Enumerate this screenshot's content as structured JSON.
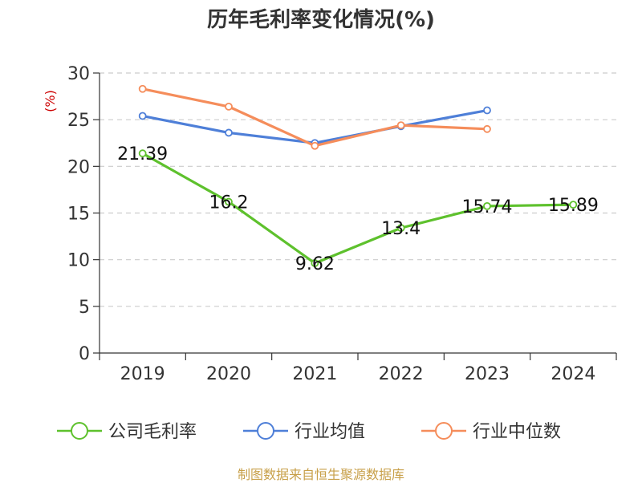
{
  "chart_data": {
    "type": "line",
    "title": "历年毛利率变化情况(%)",
    "ylabel": "(%)",
    "categories": [
      "2019",
      "2020",
      "2021",
      "2022",
      "2023",
      "2024"
    ],
    "ylim": [
      0,
      30
    ],
    "yticks": [
      0,
      5,
      10,
      15,
      20,
      25,
      30
    ],
    "grid": true,
    "legend_position": "bottom",
    "series": [
      {
        "name": "公司毛利率",
        "color": "#5ec12d",
        "show_labels": true,
        "values": [
          21.39,
          16.2,
          9.62,
          13.4,
          15.74,
          15.89
        ]
      },
      {
        "name": "行业均值",
        "color": "#4e7fd8",
        "show_labels": false,
        "values": [
          25.4,
          23.6,
          22.5,
          24.3,
          26.0,
          null
        ]
      },
      {
        "name": "行业中位数",
        "color": "#f58d5b",
        "show_labels": false,
        "values": [
          28.3,
          26.4,
          22.2,
          24.4,
          24.0,
          null
        ]
      }
    ],
    "data_labels": [
      "21.39",
      "16.2",
      "9.62",
      "13.4",
      "15.74",
      "15.89"
    ]
  },
  "footer": {
    "source": "制图数据来自恒生聚源数据库"
  }
}
